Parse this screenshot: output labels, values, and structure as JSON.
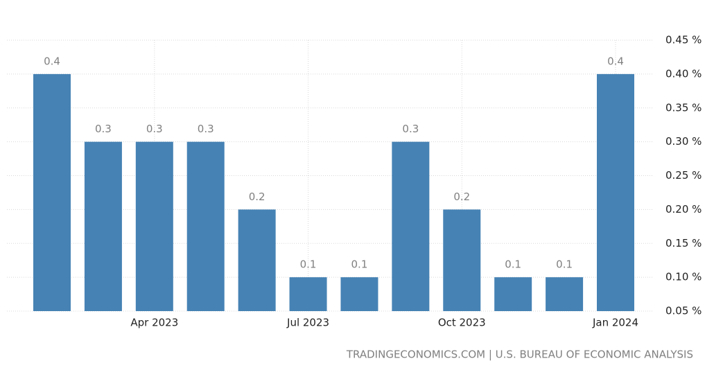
{
  "chart_data": {
    "type": "bar",
    "categories": [
      null,
      null,
      "Apr 2023",
      null,
      null,
      "Jul 2023",
      null,
      null,
      "Oct 2023",
      null,
      null,
      "Jan 2024"
    ],
    "values": [
      0.4,
      0.3,
      0.3,
      0.3,
      0.2,
      0.1,
      0.1,
      0.3,
      0.2,
      0.1,
      0.1,
      0.4
    ],
    "color": "#4682b4",
    "ylim": [
      0.05,
      0.45
    ],
    "yticks": [
      {
        "value": 0.05,
        "label": "0.05 %"
      },
      {
        "value": 0.1,
        "label": "0.10 %"
      },
      {
        "value": 0.15,
        "label": "0.15 %"
      },
      {
        "value": 0.2,
        "label": "0.20 %"
      },
      {
        "value": 0.25,
        "label": "0.25 %"
      },
      {
        "value": 0.3,
        "label": "0.30 %"
      },
      {
        "value": 0.35,
        "label": "0.35 %"
      },
      {
        "value": 0.4,
        "label": "0.40 %"
      },
      {
        "value": 0.45,
        "label": "0.45 %"
      }
    ],
    "grid": true,
    "y_axis_side": "right",
    "source": "TRADINGECONOMICS.COM | U.S. BUREAU OF ECONOMIC ANALYSIS"
  }
}
